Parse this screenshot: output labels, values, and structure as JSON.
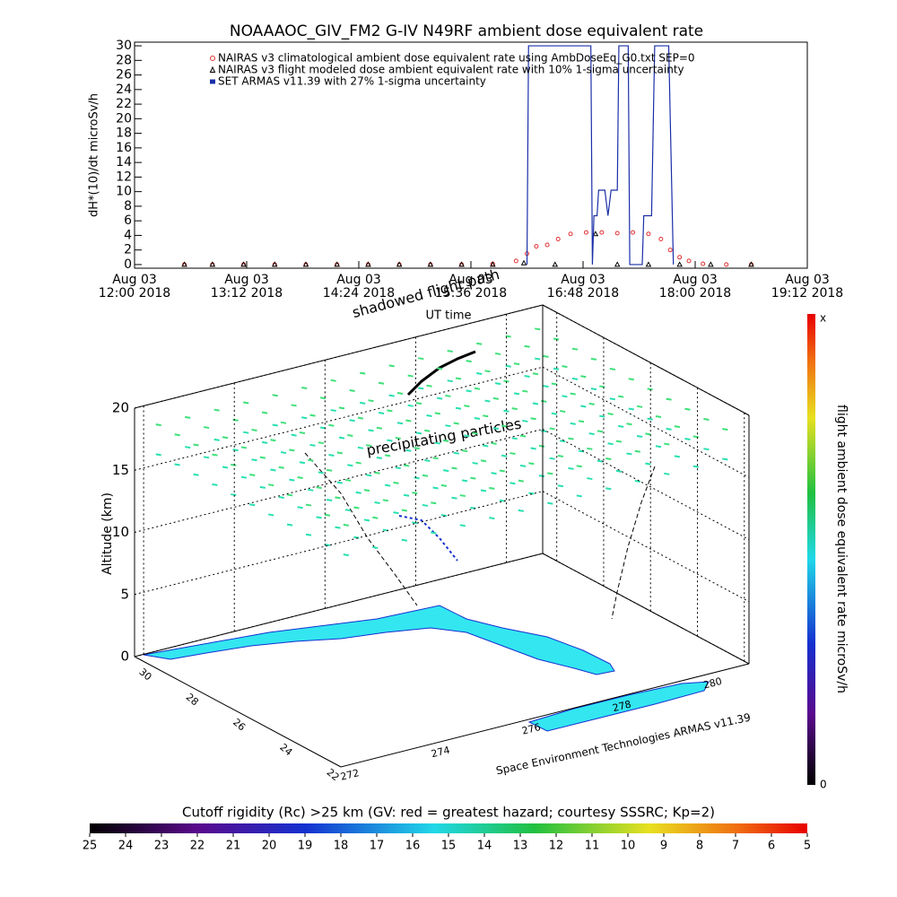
{
  "chart_data": [
    {
      "type": "line",
      "title": "NOAAAOC_GIV_FM2 G-IV    N49RF  ambient dose equivalent rate",
      "xlabel": "UT time",
      "ylabel": "dH*(10)/dt microSv/h",
      "xlim": [
        "2018-08-03T12:00",
        "2018-08-03T19:12"
      ],
      "xticks": [
        {
          "value": "2018-08-03T12:00",
          "label": "Aug 03\n12:00 2018"
        },
        {
          "value": "2018-08-03T13:12",
          "label": "Aug 03\n13:12 2018"
        },
        {
          "value": "2018-08-03T14:24",
          "label": "Aug 03\n14:24 2018"
        },
        {
          "value": "2018-08-03T15:36",
          "label": "Aug 03\n15:36 2018"
        },
        {
          "value": "2018-08-03T16:48",
          "label": "Aug 03\n16:48 2018"
        },
        {
          "value": "2018-08-03T18:00",
          "label": "Aug 03\n18:00 2018"
        },
        {
          "value": "2018-08-03T19:12",
          "label": "Aug 03\n19:12 2018"
        }
      ],
      "ylim": [
        -0.5,
        30.5
      ],
      "yticks": [
        0,
        2,
        4,
        6,
        8,
        10,
        12,
        14,
        16,
        18,
        20,
        22,
        24,
        26,
        28,
        30
      ],
      "series": [
        {
          "name": "NAIRAS v3 climatological ambient dose equivalent rate using AmbDoseEq_G0.txt SEP=0",
          "color": "#e03030",
          "marker": "circle",
          "x": [
            "2018-08-03T12:32",
            "2018-08-03T12:50",
            "2018-08-03T13:10",
            "2018-08-03T13:30",
            "2018-08-03T13:50",
            "2018-08-03T14:10",
            "2018-08-03T14:30",
            "2018-08-03T14:50",
            "2018-08-03T15:10",
            "2018-08-03T15:30",
            "2018-08-03T15:50",
            "2018-08-03T16:05",
            "2018-08-03T16:12",
            "2018-08-03T16:18",
            "2018-08-03T16:25",
            "2018-08-03T16:32",
            "2018-08-03T16:40",
            "2018-08-03T16:50",
            "2018-08-03T17:00",
            "2018-08-03T17:10",
            "2018-08-03T17:20",
            "2018-08-03T17:30",
            "2018-08-03T17:38",
            "2018-08-03T17:44",
            "2018-08-03T17:50",
            "2018-08-03T17:56",
            "2018-08-03T18:05",
            "2018-08-03T18:20",
            "2018-08-03T18:36"
          ],
          "values": [
            0,
            0,
            0,
            0,
            0,
            0,
            0,
            0,
            0,
            0,
            0.1,
            0.5,
            1.5,
            2.5,
            2.7,
            3.5,
            4.2,
            4.4,
            4.4,
            4.3,
            4.4,
            4.2,
            3.5,
            2.0,
            1.0,
            0.5,
            0.1,
            0,
            0
          ]
        },
        {
          "name": "NAIRAS v3 flight modeled dose ambient equivalent rate with 10% 1-sigma uncertainty",
          "color": "#000000",
          "marker": "triangle",
          "x": [
            "2018-08-03T12:32",
            "2018-08-03T12:50",
            "2018-08-03T13:10",
            "2018-08-03T13:30",
            "2018-08-03T13:50",
            "2018-08-03T14:10",
            "2018-08-03T14:30",
            "2018-08-03T14:50",
            "2018-08-03T15:10",
            "2018-08-03T15:30",
            "2018-08-03T15:50",
            "2018-08-03T16:10",
            "2018-08-03T16:30",
            "2018-08-03T16:56",
            "2018-08-03T17:10",
            "2018-08-03T17:30",
            "2018-08-03T17:50",
            "2018-08-03T18:10",
            "2018-08-03T18:36"
          ],
          "values": [
            0,
            0,
            0,
            0,
            0,
            0,
            0,
            0,
            0,
            0,
            0,
            0.2,
            0,
            4.2,
            0,
            0,
            0,
            0,
            0
          ]
        },
        {
          "name": "SET ARMAS v11.39 with 27% 1-sigma uncertainty",
          "color": "#1a2fa8",
          "marker": "square",
          "x": [
            "2018-08-03T16:12",
            "2018-08-03T16:13",
            "2018-08-03T16:53",
            "2018-08-03T16:54",
            "2018-08-03T16:55",
            "2018-08-03T16:57",
            "2018-08-03T16:58",
            "2018-08-03T17:00",
            "2018-08-03T17:02",
            "2018-08-03T17:04",
            "2018-08-03T17:06",
            "2018-08-03T17:10",
            "2018-08-03T17:11",
            "2018-08-03T17:17",
            "2018-08-03T17:18",
            "2018-08-03T17:26",
            "2018-08-03T17:27",
            "2018-08-03T17:32",
            "2018-08-03T17:34",
            "2018-08-03T17:43",
            "2018-08-03T17:46"
          ],
          "values": [
            0,
            30,
            30,
            0,
            6.7,
            6.7,
            10.2,
            10.2,
            10.2,
            6.7,
            10.2,
            10.2,
            30,
            30,
            0,
            0,
            6.7,
            6.7,
            30,
            30,
            0
          ]
        }
      ]
    },
    {
      "type": "surface3d",
      "annotations": [
        "shadowed flight path",
        "precipitating particles"
      ],
      "zlabel": "Altitude (km)",
      "credit": "Space Environment Technologies ARMAS v11.39",
      "xlim": [
        271.8,
        280.8
      ],
      "xticks": [
        272,
        274,
        276,
        278,
        280
      ],
      "ylim": [
        30.6,
        21.8
      ],
      "yticks": [
        30,
        28,
        26,
        24,
        22
      ],
      "zlim": [
        0,
        20
      ],
      "zticks": [
        0,
        5,
        10,
        15,
        20
      ],
      "colorbar": {
        "label": "flight ambient dose equivalent rate microSv/h",
        "ticks": [
          "x",
          0
        ]
      }
    },
    {
      "type": "colorbar",
      "title": "Cutoff rigidity (Rc) >25 km (GV: red = greatest hazard; courtesy SSSRC; Kp=2)",
      "lim": [
        25,
        5
      ],
      "ticks": [
        25,
        24,
        23,
        22,
        21,
        20,
        19,
        18,
        17,
        16,
        15,
        14,
        13,
        12,
        11,
        10,
        9,
        8,
        7,
        6,
        5
      ]
    }
  ]
}
